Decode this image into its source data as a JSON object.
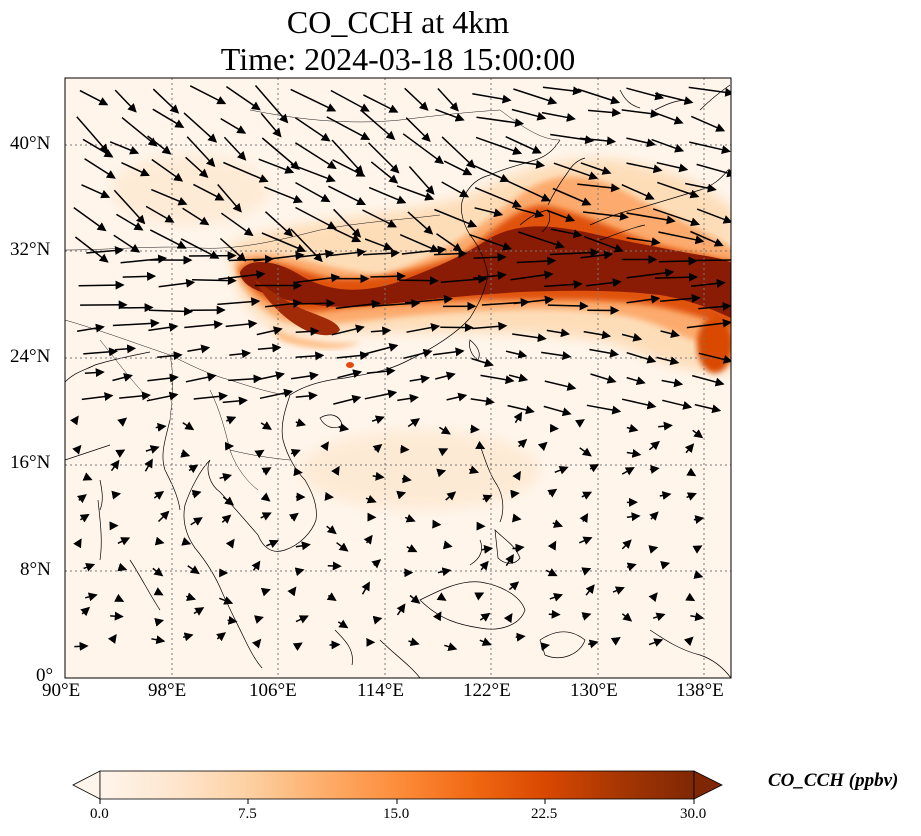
{
  "title": {
    "line1": "CO_CCH at 4km",
    "line2": "Time: 2024-03-18 15:00:00"
  },
  "axes": {
    "lon_ticks": [
      "90°E",
      "98°E",
      "106°E",
      "114°E",
      "122°E",
      "130°E",
      "138°E"
    ],
    "lat_ticks": [
      "0°",
      "8°N",
      "16°N",
      "24°N",
      "32°N",
      "40°N"
    ],
    "lon_range": [
      90,
      140
    ],
    "lat_range": [
      0,
      45
    ],
    "grid": true
  },
  "colorbar": {
    "label": "CO_CCH (ppbv)",
    "ticks": [
      "0.0",
      "7.5",
      "15.0",
      "22.5",
      "30.0"
    ],
    "range": [
      0,
      30
    ],
    "colormap": [
      "#fff5eb",
      "#fee6ce",
      "#fdd0a2",
      "#fdae6b",
      "#fd8d3c",
      "#f16913",
      "#d94801",
      "#a63603",
      "#7f2704"
    ],
    "extend": "both"
  },
  "map_data": {
    "plume_core": [
      [
        103,
        30.5
      ],
      [
        106,
        29.5
      ],
      [
        110,
        28.8
      ],
      [
        114,
        29.5
      ],
      [
        118,
        30.5
      ],
      [
        122,
        31.5
      ],
      [
        126,
        32.5
      ],
      [
        130,
        32
      ],
      [
        134,
        31
      ],
      [
        138,
        30.5
      ],
      [
        140,
        30
      ]
    ],
    "plume_branch": [
      [
        103,
        30.5
      ],
      [
        106,
        28
      ],
      [
        109,
        26
      ]
    ],
    "winds": "westerly to north-westerly jet north of 24°N, weak flow south"
  }
}
